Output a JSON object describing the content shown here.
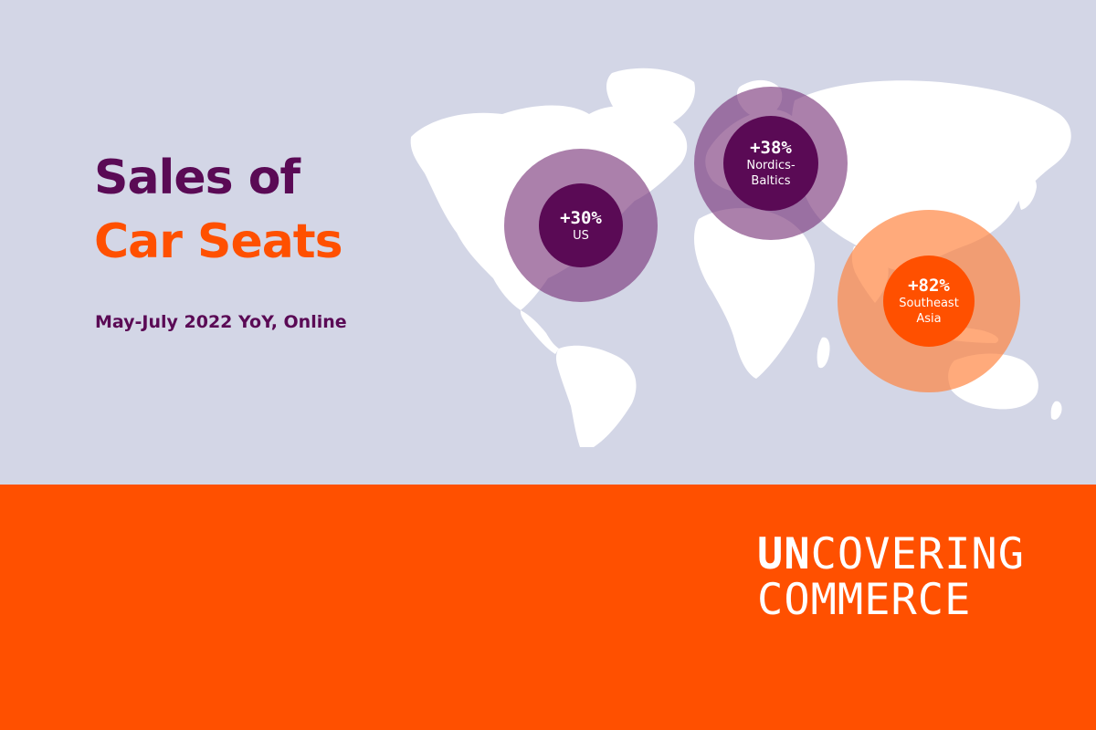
{
  "headline": {
    "line1": "Sales of",
    "line2": "Car Seats"
  },
  "subtitle": "May-July 2022 YoY, Online",
  "regions": [
    {
      "id": "us",
      "value": "+30%",
      "label": "US",
      "color": "#5a0a55"
    },
    {
      "id": "nordics-baltics",
      "value": "+38%",
      "label": "Nordics-\nBaltics",
      "color": "#5a0a55"
    },
    {
      "id": "southeast-asia",
      "value": "+82%",
      "label": "Southeast\nAsia",
      "color": "#ff5000"
    }
  ],
  "brand": {
    "line1_bold": "UN",
    "line1_rest": "COVERING",
    "line2": "COMMERCE"
  },
  "colors": {
    "background": "#d3d6e6",
    "accent_orange": "#ff5000",
    "accent_purple": "#5a0a55",
    "land": "#ffffff"
  }
}
